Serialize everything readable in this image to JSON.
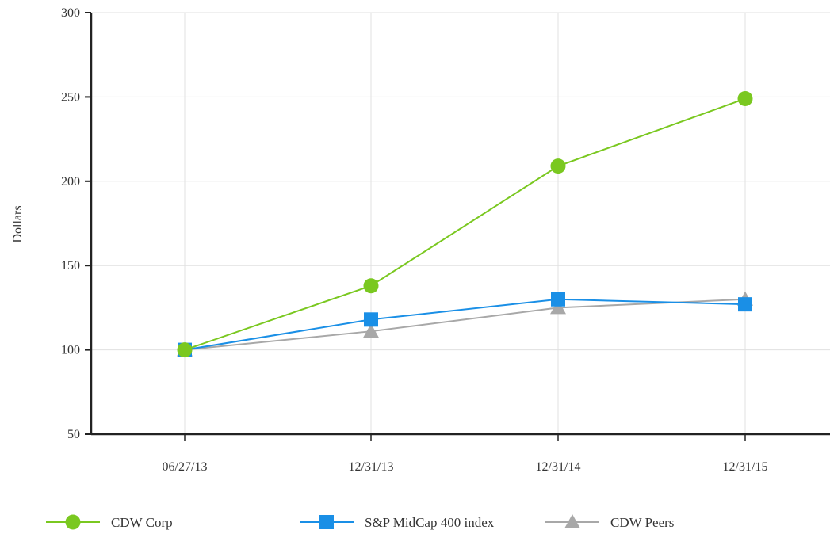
{
  "chart_data": {
    "type": "line",
    "ylabel": "Dollars",
    "xlabel": "",
    "categories": [
      "06/27/13",
      "12/31/13",
      "12/31/14",
      "12/31/15"
    ],
    "yticks": [
      "50",
      "100",
      "150",
      "200",
      "250",
      "300"
    ],
    "ylim": [
      50,
      300
    ],
    "grid": true,
    "legend_position": "bottom",
    "series": [
      {
        "name": "CDW Corp",
        "values": [
          100,
          138,
          209,
          249
        ],
        "color": "#7ac820",
        "marker": "circle"
      },
      {
        "name": "S&P MidCap 400 index",
        "values": [
          100,
          118,
          130,
          127
        ],
        "color": "#1a8fe6",
        "marker": "square"
      },
      {
        "name": "CDW Peers",
        "values": [
          100,
          111,
          125,
          130
        ],
        "color": "#a8a8a8",
        "marker": "triangle"
      }
    ]
  }
}
